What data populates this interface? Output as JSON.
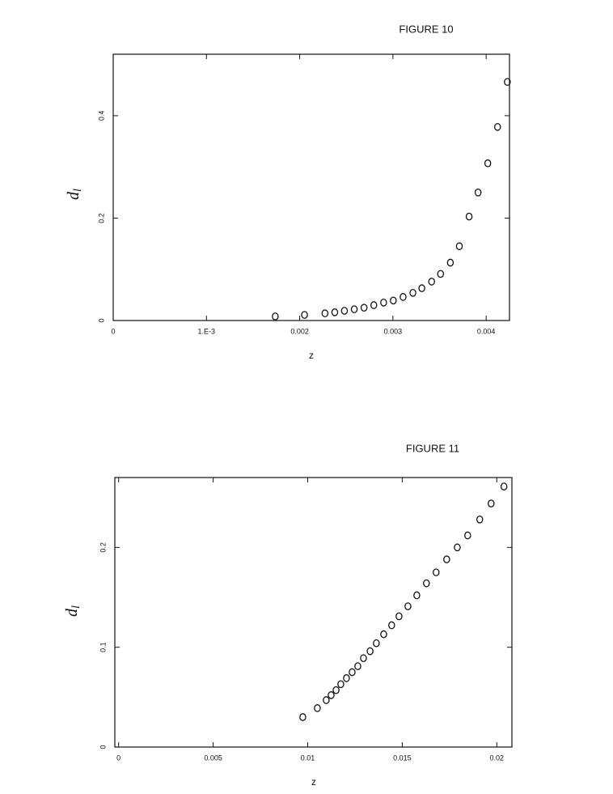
{
  "chart_data": [
    {
      "type": "scatter",
      "title": "FIGURE  10",
      "xlabel": "z",
      "ylabel": "d",
      "ylabel_subscript": "l",
      "x": [
        0.001738,
        0.002052,
        0.002271,
        0.002376,
        0.00248,
        0.002585,
        0.00269,
        0.002795,
        0.0029,
        0.003004,
        0.003109,
        0.003214,
        0.00331,
        0.003415,
        0.003511,
        0.003616,
        0.003712,
        0.003817,
        0.003913,
        0.004017,
        0.004122,
        0.004227
      ],
      "values": [
        0.008,
        0.011,
        0.014,
        0.016,
        0.019,
        0.022,
        0.025,
        0.03,
        0.035,
        0.039,
        0.046,
        0.054,
        0.063,
        0.076,
        0.091,
        0.113,
        0.145,
        0.203,
        0.25,
        0.307,
        0.378,
        0.466
      ],
      "color": "#111111",
      "xlim": [
        0,
        0.00425
      ],
      "ylim": [
        0,
        0.52
      ],
      "xticks": [
        0,
        {
          "value": 0.001,
          "label": "1.E-3"
        },
        0.002,
        0.003,
        0.004
      ],
      "yticks": [
        0,
        0.2,
        0.4
      ]
    },
    {
      "type": "scatter",
      "title": "FIGURE  11",
      "xlabel": "z",
      "ylabel": "d",
      "ylabel_subscript": "l",
      "x": [
        0.00974,
        0.01051,
        0.01098,
        0.01124,
        0.0115,
        0.01175,
        0.01205,
        0.01235,
        0.01265,
        0.01295,
        0.0133,
        0.01363,
        0.01402,
        0.01444,
        0.01483,
        0.0153,
        0.01577,
        0.01628,
        0.01679,
        0.01735,
        0.01791,
        0.01846,
        0.0191,
        0.0197,
        0.02038
      ],
      "values": [
        0.03,
        0.039,
        0.047,
        0.052,
        0.057,
        0.063,
        0.069,
        0.075,
        0.081,
        0.089,
        0.096,
        0.104,
        0.113,
        0.122,
        0.131,
        0.141,
        0.152,
        0.164,
        0.175,
        0.188,
        0.2,
        0.212,
        0.228,
        0.244,
        0.261
      ],
      "color": "#111111",
      "xlim": [
        -0.0002,
        0.0208
      ],
      "ylim": [
        0,
        0.27
      ],
      "xticks": [
        0,
        0.005,
        0.01,
        0.015,
        0.02
      ],
      "yticks": [
        0,
        0.1,
        0.2
      ]
    }
  ]
}
